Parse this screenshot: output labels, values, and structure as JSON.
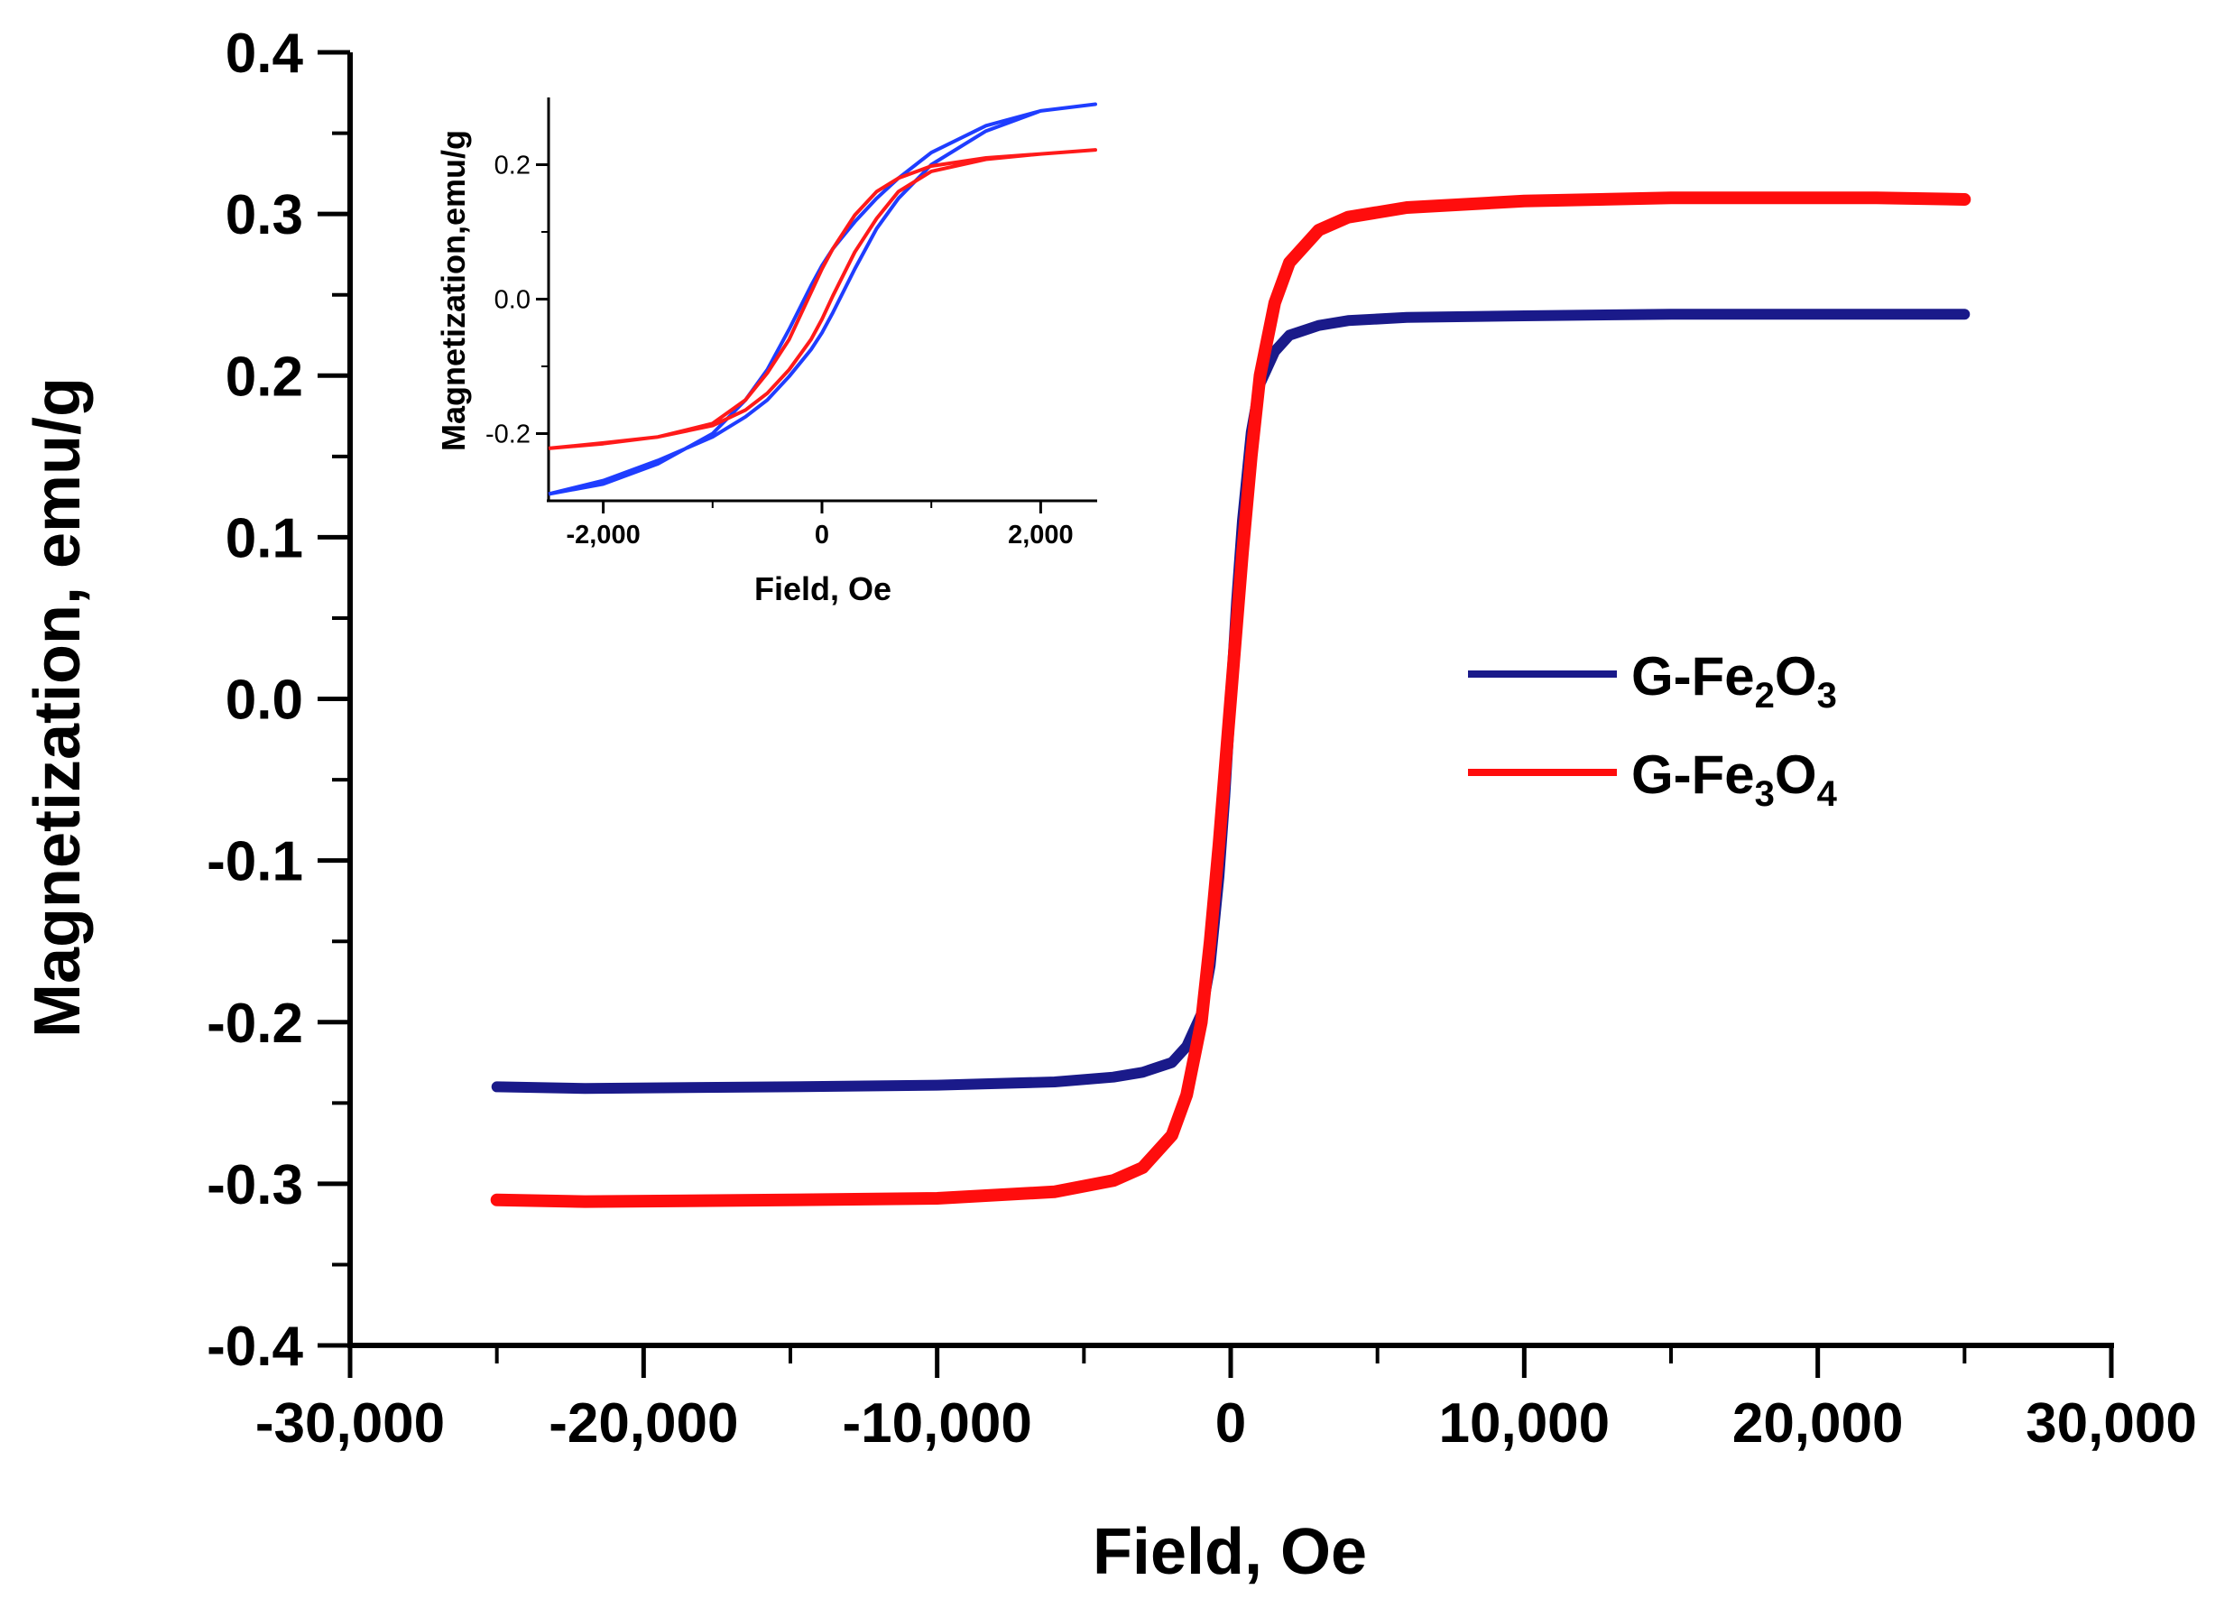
{
  "colors": {
    "g_fe2o3": "#1a1a8a",
    "g_fe3o4": "#ff0d0d",
    "inset_fe2o3": "#1f3dff",
    "inset_fe3o4": "#ff1a1a",
    "axis": "#000000"
  },
  "chart_data": [
    {
      "type": "line",
      "panel": "main",
      "xlabel": "Field, Oe",
      "ylabel": "Magnetization, emu/g",
      "xlim": [
        -30000,
        30000
      ],
      "ylim": [
        -0.4,
        0.4
      ],
      "xticks": [
        -30000,
        -20000,
        -10000,
        0,
        10000,
        20000,
        30000
      ],
      "xtick_labels": [
        "-30,000",
        "-20,000",
        "-10,000",
        "0",
        "10,000",
        "20,000",
        "30,000"
      ],
      "yticks": [
        -0.4,
        -0.3,
        -0.2,
        -0.1,
        0.0,
        0.1,
        0.2,
        0.3,
        0.4
      ],
      "ytick_labels": [
        "-0.4",
        "-0.3",
        "-0.2",
        "-0.1",
        "0.0",
        "0.1",
        "0.2",
        "0.3",
        "0.4"
      ],
      "legend": {
        "placement": "center-right",
        "entries": [
          {
            "label_main": "G-Fe",
            "sub1": "2",
            "mid": "O",
            "sub2": "3"
          },
          {
            "label_main": "G-Fe",
            "sub1": "3",
            "mid": "O",
            "sub2": "4"
          }
        ]
      },
      "series": [
        {
          "name": "G-Fe2O3",
          "x": [
            -25000,
            -22000,
            -15000,
            -10000,
            -6000,
            -4000,
            -3000,
            -2000,
            -1500,
            -1000,
            -700,
            -400,
            -200,
            0,
            200,
            400,
            700,
            1000,
            1500,
            2000,
            3000,
            4000,
            6000,
            10000,
            15000,
            22000,
            25000
          ],
          "y": [
            -0.24,
            -0.241,
            -0.24,
            -0.239,
            -0.237,
            -0.234,
            -0.231,
            -0.225,
            -0.215,
            -0.195,
            -0.165,
            -0.11,
            -0.06,
            0.0,
            0.06,
            0.11,
            0.165,
            0.195,
            0.215,
            0.225,
            0.231,
            0.234,
            0.236,
            0.237,
            0.238,
            0.238,
            0.238
          ]
        },
        {
          "name": "G-Fe3O4",
          "x": [
            -25000,
            -22000,
            -15000,
            -10000,
            -6000,
            -4000,
            -3000,
            -2000,
            -1500,
            -1000,
            -700,
            -400,
            -200,
            0,
            200,
            400,
            700,
            1000,
            1500,
            2000,
            3000,
            4000,
            6000,
            10000,
            15000,
            22000,
            25000
          ],
          "y": [
            -0.31,
            -0.311,
            -0.31,
            -0.309,
            -0.305,
            -0.298,
            -0.29,
            -0.27,
            -0.245,
            -0.2,
            -0.15,
            -0.09,
            -0.045,
            0.0,
            0.045,
            0.09,
            0.15,
            0.2,
            0.245,
            0.27,
            0.29,
            0.298,
            0.304,
            0.308,
            0.31,
            0.31,
            0.309
          ]
        }
      ]
    },
    {
      "type": "line",
      "panel": "inset",
      "xlabel": "Field, Oe",
      "ylabel": "Magnetization,emu/g",
      "xlim": [
        -2500,
        2500
      ],
      "ylim": [
        -0.3,
        0.3
      ],
      "xticks": [
        -2000,
        0,
        2000
      ],
      "xtick_labels": [
        "-2,000",
        "0",
        "2,000"
      ],
      "yticks": [
        -0.2,
        0.0,
        0.2
      ],
      "ytick_labels": [
        "-0.2",
        "0.0",
        "0.2"
      ],
      "series": [
        {
          "name": "G-Fe2O3 (loop)",
          "x": [
            -2500,
            -2000,
            -1500,
            -1000,
            -700,
            -500,
            -300,
            -100,
            0,
            100,
            300,
            500,
            700,
            1000,
            1500,
            2000,
            2500,
            2000,
            1500,
            1000,
            700,
            500,
            300,
            100,
            0,
            -100,
            -300,
            -500,
            -700,
            -1000,
            -1500,
            -2000,
            -2500
          ],
          "y": [
            -0.29,
            -0.27,
            -0.24,
            -0.205,
            -0.175,
            -0.15,
            -0.115,
            -0.075,
            -0.05,
            -0.02,
            0.045,
            0.105,
            0.15,
            0.2,
            0.25,
            0.28,
            0.29,
            0.28,
            0.258,
            0.218,
            0.18,
            0.15,
            0.115,
            0.075,
            0.05,
            0.02,
            -0.045,
            -0.105,
            -0.15,
            -0.2,
            -0.245,
            -0.275,
            -0.29
          ]
        },
        {
          "name": "G-Fe3O4 (loop)",
          "x": [
            -2500,
            -2000,
            -1500,
            -1000,
            -700,
            -500,
            -300,
            -100,
            0,
            100,
            300,
            500,
            700,
            1000,
            1500,
            2000,
            2500,
            2000,
            1500,
            1000,
            700,
            500,
            300,
            100,
            0,
            -100,
            -300,
            -500,
            -700,
            -1000,
            -1500,
            -2000,
            -2500
          ],
          "y": [
            -0.222,
            -0.215,
            -0.205,
            -0.188,
            -0.165,
            -0.14,
            -0.105,
            -0.06,
            -0.03,
            0.005,
            0.07,
            0.12,
            0.16,
            0.19,
            0.208,
            0.216,
            0.222,
            0.216,
            0.21,
            0.198,
            0.18,
            0.16,
            0.125,
            0.075,
            0.045,
            0.01,
            -0.06,
            -0.11,
            -0.15,
            -0.185,
            -0.205,
            -0.214,
            -0.222
          ]
        }
      ]
    }
  ]
}
